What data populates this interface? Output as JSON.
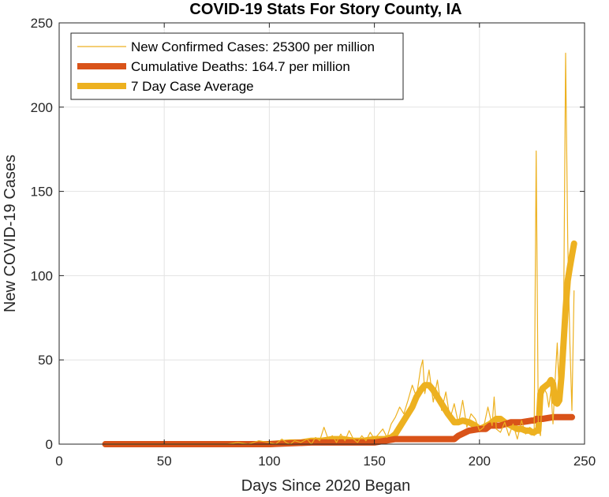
{
  "chart_data": {
    "type": "line",
    "title": "COVID-19 Stats For Story County, IA",
    "xlabel": "Days Since 2020 Began",
    "ylabel": "New COVID-19 Cases",
    "xlim": [
      0,
      250
    ],
    "ylim": [
      0,
      250
    ],
    "xticks": [
      0,
      50,
      100,
      150,
      200,
      250
    ],
    "yticks": [
      0,
      50,
      100,
      150,
      200,
      250
    ],
    "grid": true,
    "legend_position": "top-left",
    "series": [
      {
        "name": "New Confirmed Cases: 25300 per million",
        "color": "#EDB120",
        "style": "thin",
        "x": [
          22,
          40,
          60,
          80,
          85,
          90,
          95,
          100,
          103,
          106,
          108,
          110,
          112,
          115,
          118,
          120,
          122,
          124,
          126,
          128,
          130,
          132,
          134,
          136,
          138,
          140,
          142,
          144,
          146,
          148,
          150,
          152,
          154,
          156,
          158,
          160,
          162,
          164,
          166,
          168,
          170,
          172,
          173,
          174,
          176,
          178,
          180,
          182,
          184,
          186,
          188,
          190,
          192,
          194,
          196,
          198,
          200,
          202,
          204,
          206,
          207,
          208,
          210,
          212,
          214,
          216,
          218,
          220,
          222,
          224,
          225,
          226,
          227,
          228,
          229,
          230,
          232,
          233,
          234,
          235,
          236,
          237,
          238,
          239,
          240,
          241,
          242,
          243,
          244,
          245
        ],
        "y": [
          0,
          0,
          0,
          0,
          1,
          0,
          2,
          1,
          0,
          3,
          1,
          0,
          2,
          1,
          3,
          0,
          4,
          2,
          10,
          3,
          5,
          1,
          6,
          2,
          8,
          3,
          1,
          5,
          2,
          7,
          3,
          6,
          9,
          4,
          12,
          16,
          22,
          18,
          26,
          35,
          28,
          45,
          50,
          30,
          44,
          25,
          38,
          20,
          31,
          15,
          24,
          12,
          26,
          10,
          18,
          15,
          8,
          10,
          22,
          11,
          28,
          9,
          7,
          13,
          5,
          12,
          3,
          14,
          6,
          10,
          8,
          5,
          174,
          10,
          5,
          35,
          30,
          22,
          32,
          12,
          38,
          60,
          28,
          45,
          70,
          232,
          120,
          60,
          20,
          91
        ]
      },
      {
        "name": "Cumulative Deaths: 164.7 per million",
        "color": "#D95319",
        "style": "thick",
        "x": [
          22,
          100,
          120,
          150,
          160,
          188,
          190,
          195,
          200,
          203,
          205,
          210,
          215,
          220,
          225,
          226,
          227,
          230,
          235,
          244
        ],
        "y": [
          0,
          0,
          1,
          1,
          3,
          3,
          5,
          8,
          9,
          9,
          11,
          11,
          13,
          13,
          14,
          14,
          15,
          15,
          16,
          16
        ]
      },
      {
        "name": "7 Day Case Average",
        "color": "#EDB120",
        "style": "thick",
        "x": [
          22,
          60,
          90,
          100,
          110,
          115,
          120,
          125,
          130,
          135,
          140,
          145,
          150,
          155,
          158,
          160,
          162,
          165,
          168,
          170,
          172,
          174,
          176,
          178,
          180,
          182,
          185,
          188,
          190,
          192,
          195,
          198,
          200,
          202,
          205,
          208,
          210,
          212,
          215,
          218,
          220,
          222,
          224,
          225,
          226,
          227,
          228,
          229,
          230,
          232,
          233,
          234,
          235,
          236,
          237,
          238,
          239,
          240,
          241,
          242,
          243,
          244,
          245
        ],
        "y": [
          0,
          0,
          0,
          0,
          1,
          1,
          2,
          2,
          3,
          3,
          2,
          2,
          3,
          3,
          4,
          6,
          10,
          16,
          22,
          28,
          32,
          35,
          35,
          32,
          28,
          24,
          18,
          13,
          13,
          14,
          13,
          11,
          9,
          10,
          12,
          15,
          15,
          13,
          11,
          9,
          9,
          8,
          8,
          7,
          7,
          8,
          8,
          30,
          33,
          35,
          36,
          38,
          36,
          25,
          24,
          26,
          40,
          60,
          80,
          97,
          105,
          112,
          119
        ]
      }
    ]
  }
}
